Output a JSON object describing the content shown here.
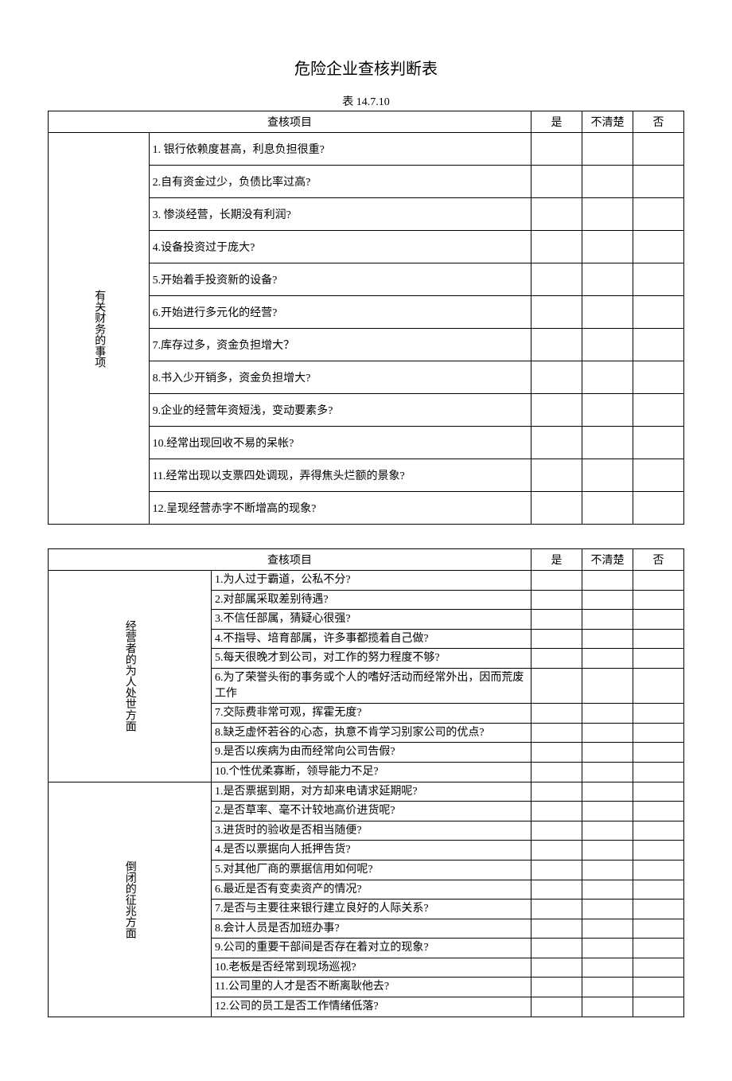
{
  "title": "危险企业查核判断表",
  "subtitle": "表 14.7.10",
  "headers": {
    "item": "查核项目",
    "yes": "是",
    "unclear": "不清楚",
    "no": "否"
  },
  "section1": {
    "label": "有关财务的事项",
    "items": [
      "1. 银行依赖度甚高，利息负担很重?",
      "2.自有资金过少，负债比率过高?",
      "3. 惨淡经营，长期没有利润?",
      "4.设备投资过于庞大?",
      "5.开始着手投资新的设备?",
      "6.开始进行多元化的经营?",
      "7.库存过多，资金负担增大？",
      "8.书入少开销多，资金负担增大?",
      "9.企业的经营年资短浅，变动要素多?",
      "10.经常出现回收不易的呆帐?",
      "11.经常出现以支票四处调现，弄得焦头烂额的景象?",
      "12.呈现经营赤字不断增高的现象?"
    ]
  },
  "section2": {
    "label": "经营者的为人处世方面",
    "items": [
      "1.为人过于霸道，公私不分?",
      "2.对部属采取差别待遇?",
      "3.不信任部属，猜疑心很强?",
      "4.不指导、培育部属，许多事都揽着自己做?",
      "5.每天很晚才到公司，对工作的努力程度不够?",
      "6.为了荣誉头衔的事务或个人的嗜好活动而经常外出，因而荒废工作",
      "7.交际费非常可观，挥霍无度?",
      "8.缺乏虚怀若谷的心态，执意不肯学习别家公司的优点?",
      "9.是否以疾病为由而经常向公司告假?",
      "10.个性优柔寡断，领导能力不足?"
    ]
  },
  "section3": {
    "label": "倒闭的征兆方面",
    "items": [
      "1.是否票据到期，对方却来电请求延期呢?",
      "2.是否草率、毫不计较地高价进货呢?",
      "3.进货时的验收是否相当随便?",
      "4.是否以票据向人抵押告货?",
      "5.对其他厂商的票据信用如何呢?",
      "6.最近是否有变卖资产的情况?",
      "7.是否与主要往来银行建立良好的人际关系?",
      "8.会计人员是否加班办事?",
      "9.公司的重要干部间是否存在着对立的现象?",
      "10.老板是否经常到现场巡视?",
      "11.公司里的人才是否不断离耿他去?",
      "12.公司的员工是否工作情绪低落?"
    ]
  }
}
